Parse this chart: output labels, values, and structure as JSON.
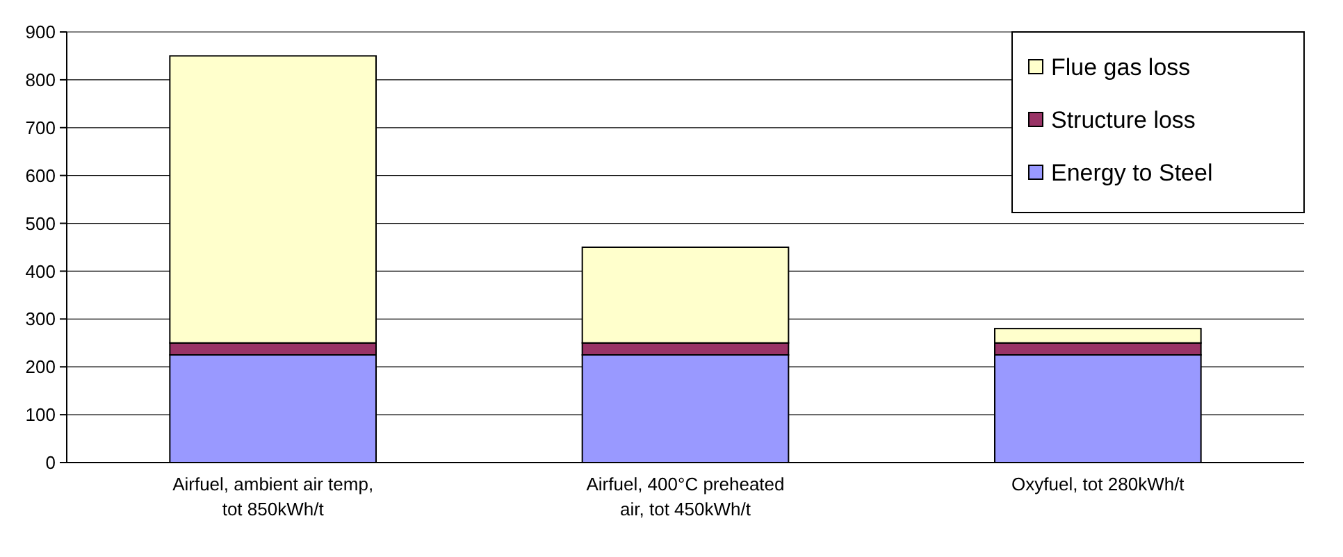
{
  "chart_data": {
    "type": "bar",
    "stacked": true,
    "categories": [
      "Airfuel, ambient air temp, tot 850kWh/t",
      "Airfuel, 400°C preheated air, tot 450kWh/t",
      "Oxyfuel, tot 280kWh/t"
    ],
    "series": [
      {
        "name": "Energy to Steel",
        "color": "#9999ff",
        "values": [
          225,
          225,
          225
        ]
      },
      {
        "name": "Structure loss",
        "color": "#993366",
        "values": [
          25,
          25,
          25
        ]
      },
      {
        "name": "Flue gas loss",
        "color": "#ffffcc",
        "values": [
          600,
          200,
          30
        ]
      }
    ],
    "ylim": [
      0,
      900
    ],
    "yticks": [
      0,
      100,
      200,
      300,
      400,
      500,
      600,
      700,
      800,
      900
    ],
    "grid": "y",
    "legend": "top right"
  }
}
